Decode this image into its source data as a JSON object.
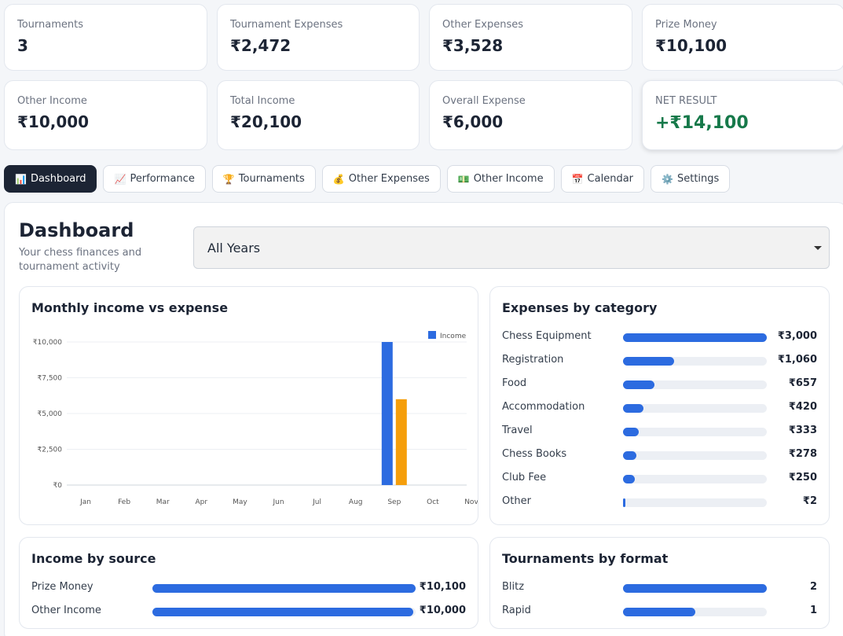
{
  "stats": [
    {
      "label": "Tournaments",
      "value": "3"
    },
    {
      "label": "Tournament Expenses",
      "value": "₹2,472"
    },
    {
      "label": "Other Expenses",
      "value": "₹3,528"
    },
    {
      "label": "Prize Money",
      "value": "₹10,100"
    },
    {
      "label": "Other Income",
      "value": "₹10,000"
    },
    {
      "label": "Total Income",
      "value": "₹20,100"
    },
    {
      "label": "Overall Expense",
      "value": "₹6,000"
    },
    {
      "label": "NET RESULT",
      "value": "+₹14,100"
    }
  ],
  "tabs": [
    {
      "icon": "📊",
      "label": "Dashboard"
    },
    {
      "icon": "📈",
      "label": "Performance"
    },
    {
      "icon": "🏆",
      "label": "Tournaments"
    },
    {
      "icon": "💰",
      "label": "Other Expenses"
    },
    {
      "icon": "💵",
      "label": "Other Income"
    },
    {
      "icon": "📅",
      "label": "Calendar"
    },
    {
      "icon": "⚙️",
      "label": "Settings"
    }
  ],
  "page": {
    "title": "Dashboard",
    "subtitle": "Your chess finances and tournament activity"
  },
  "year_filter": {
    "selected": "All Years"
  },
  "monthly_card": {
    "title": "Monthly income vs expense"
  },
  "chart_data": {
    "type": "bar",
    "categories": [
      "Jan",
      "Feb",
      "Mar",
      "Apr",
      "May",
      "Jun",
      "Jul",
      "Aug",
      "Sep",
      "Oct",
      "Nov"
    ],
    "series": [
      {
        "name": "Income",
        "color": "#2c6be0",
        "values": [
          0,
          0,
          0,
          0,
          0,
          0,
          0,
          0,
          10000,
          0,
          0
        ]
      },
      {
        "color": "#f59e0b",
        "values": [
          0,
          0,
          0,
          0,
          0,
          0,
          0,
          0,
          6000,
          0,
          0
        ]
      }
    ],
    "yticks": [
      "₹0",
      "₹2,500",
      "₹5,000",
      "₹7,500",
      "₹10,000"
    ],
    "ylim": [
      0,
      10000
    ],
    "legend": "top-right",
    "grid": true
  },
  "expenses_card": {
    "title": "Expenses by category",
    "items": [
      {
        "label": "Chess Equipment",
        "value": "₹3,000",
        "amount": 3000
      },
      {
        "label": "Registration",
        "value": "₹1,060",
        "amount": 1060
      },
      {
        "label": "Food",
        "value": "₹657",
        "amount": 657
      },
      {
        "label": "Accommodation",
        "value": "₹420",
        "amount": 420
      },
      {
        "label": "Travel",
        "value": "₹333",
        "amount": 333
      },
      {
        "label": "Chess Books",
        "value": "₹278",
        "amount": 278
      },
      {
        "label": "Club Fee",
        "value": "₹250",
        "amount": 250
      },
      {
        "label": "Other",
        "value": "₹2",
        "amount": 2
      }
    ]
  },
  "income_card": {
    "title": "Income by source",
    "items": [
      {
        "label": "Prize Money",
        "value": "₹10,100",
        "amount": 10100
      },
      {
        "label": "Other Income",
        "value": "₹10,000",
        "amount": 10000
      }
    ]
  },
  "format_card": {
    "title": "Tournaments by format",
    "items": [
      {
        "label": "Blitz",
        "value": "2",
        "amount": 2
      },
      {
        "label": "Rapid",
        "value": "1",
        "amount": 1
      }
    ]
  }
}
